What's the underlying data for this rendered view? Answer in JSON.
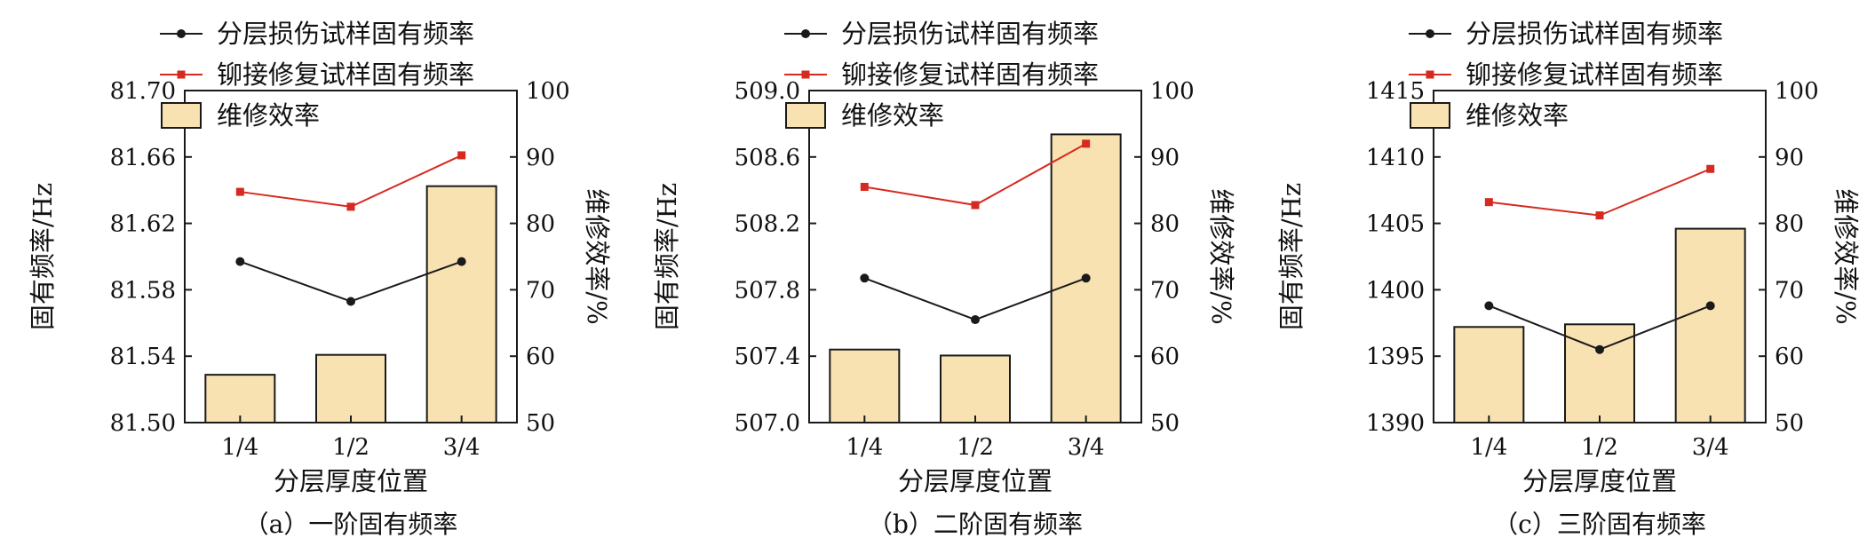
{
  "chart_data": [
    {
      "type": "bar",
      "caption": "（a）一阶固有频率",
      "categories": [
        "1/4",
        "1/2",
        "3/4"
      ],
      "xlabel": "分层厚度位置",
      "ylabel": "固有频率/Hz",
      "y2label": "维修效率/%",
      "ylim": [
        81.5,
        81.7
      ],
      "yticks": [
        "81.50",
        "81.54",
        "81.58",
        "81.62",
        "81.66",
        "81.70"
      ],
      "y2lim": [
        50,
        100
      ],
      "y2ticks": [
        "50",
        "60",
        "70",
        "80",
        "90",
        "100"
      ],
      "bars": {
        "name": "维修效率",
        "axis": "right",
        "values": [
          57.2,
          60.2,
          85.6
        ]
      },
      "series": [
        {
          "name": "分层损伤试样固有频率",
          "axis": "left",
          "color": "#1a1a1a",
          "marker": "circle",
          "values": [
            81.597,
            81.573,
            81.597
          ]
        },
        {
          "name": "铆接修复试样固有频率",
          "axis": "left",
          "color": "#d62a20",
          "marker": "square",
          "values": [
            81.639,
            81.63,
            81.661
          ]
        }
      ],
      "legend_position": "top-left"
    },
    {
      "type": "bar",
      "caption": "（b）二阶固有频率",
      "categories": [
        "1/4",
        "1/2",
        "3/4"
      ],
      "xlabel": "分层厚度位置",
      "ylabel": "固有频率/Hz",
      "y2label": "维修效率/%",
      "ylim": [
        507.0,
        509.0
      ],
      "yticks": [
        "507.0",
        "507.4",
        "507.8",
        "508.2",
        "508.6",
        "509.0"
      ],
      "y2lim": [
        50,
        100
      ],
      "y2ticks": [
        "50",
        "60",
        "70",
        "80",
        "90",
        "100"
      ],
      "bars": {
        "name": "维修效率",
        "axis": "right",
        "values": [
          61.0,
          60.1,
          93.4
        ]
      },
      "series": [
        {
          "name": "分层损伤试样固有频率",
          "axis": "left",
          "color": "#1a1a1a",
          "marker": "circle",
          "values": [
            507.87,
            507.62,
            507.87
          ]
        },
        {
          "name": "铆接修复试样固有频率",
          "axis": "left",
          "color": "#d62a20",
          "marker": "square",
          "values": [
            508.42,
            508.31,
            508.68
          ]
        }
      ],
      "legend_position": "top-left"
    },
    {
      "type": "bar",
      "caption": "（c）三阶固有频率",
      "categories": [
        "1/4",
        "1/2",
        "3/4"
      ],
      "xlabel": "分层厚度位置",
      "ylabel": "固有频率/Hz",
      "y2label": "维修效率/%",
      "ylim": [
        1390,
        1415
      ],
      "yticks": [
        "1390",
        "1395",
        "1400",
        "1405",
        "1410",
        "1415"
      ],
      "y2lim": [
        50,
        100
      ],
      "y2ticks": [
        "50",
        "60",
        "70",
        "80",
        "90",
        "100"
      ],
      "bars": {
        "name": "维修效率",
        "axis": "right",
        "values": [
          64.4,
          64.8,
          79.2
        ]
      },
      "series": [
        {
          "name": "分层损伤试样固有频率",
          "axis": "left",
          "color": "#1a1a1a",
          "marker": "circle",
          "values": [
            1398.8,
            1395.5,
            1398.8
          ]
        },
        {
          "name": "铆接修复试样固有频率",
          "axis": "left",
          "color": "#d62a20",
          "marker": "square",
          "values": [
            1406.6,
            1405.6,
            1409.1
          ]
        }
      ],
      "legend_position": "top-left"
    }
  ],
  "style": {
    "bar_fill": "#f8e2b2",
    "bar_stroke": "#1a1a1a",
    "axis_color": "#1a1a1a"
  }
}
